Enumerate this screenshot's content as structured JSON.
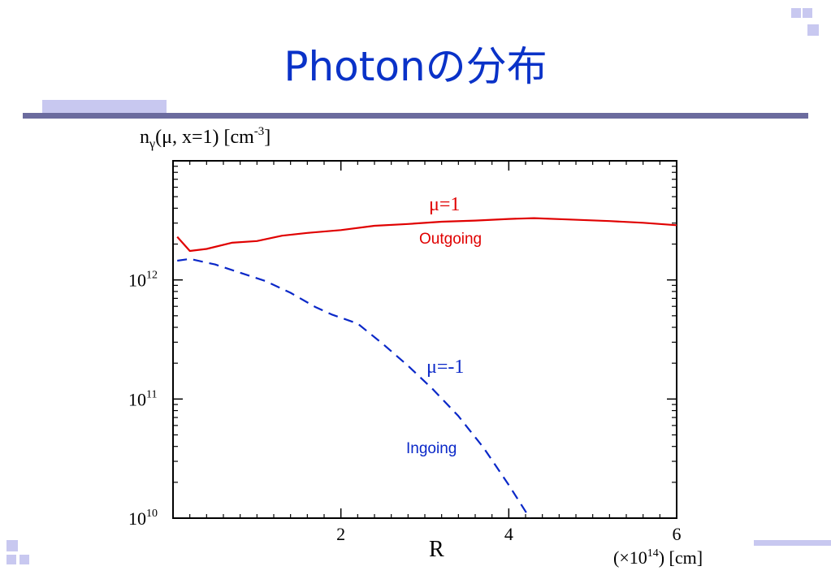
{
  "slide": {
    "title": "Photonの分布"
  },
  "colors": {
    "title": "#0a32c8",
    "outgoing": "#e00000",
    "ingoing": "#0a28c8",
    "accent_dark": "#6b6b9e",
    "accent_light": "#c8c8f0"
  },
  "icons": [
    "corner-squares-icon-top-right",
    "corner-squares-icon-bottom-left"
  ],
  "chart_data": {
    "type": "line",
    "ylabel_parts": {
      "n": "n",
      "gamma": "γ",
      "rest": "(μ, x=1) [cm",
      "exp": "-3",
      "close": "]"
    },
    "xlabel": "R",
    "x_unit_parts": {
      "open": "(×10",
      "exp": "14",
      "close": ") [cm]"
    },
    "y_scale": "log",
    "xlim": [
      0.0,
      6.0
    ],
    "ylim": [
      10000000000.0,
      10000000000000.0
    ],
    "x_ticks": [
      {
        "value": 2,
        "label": "2"
      },
      {
        "value": 4,
        "label": "4"
      },
      {
        "value": 6,
        "label": "6"
      }
    ],
    "y_ticks": [
      {
        "value": 10000000000.0,
        "base": "10",
        "exp": "10"
      },
      {
        "value": 100000000000.0,
        "base": "10",
        "exp": "11"
      },
      {
        "value": 1000000000000.0,
        "base": "10",
        "exp": "12"
      }
    ],
    "series": [
      {
        "name": "Outgoing",
        "line_style": "solid",
        "color": "#e00000",
        "label_mu": "μ=1",
        "label_text": "Outgoing",
        "x": [
          0.05,
          0.2,
          0.4,
          0.7,
          1.0,
          1.3,
          1.6,
          2.0,
          2.4,
          2.8,
          3.2,
          3.6,
          4.0,
          4.3,
          4.7,
          5.2,
          5.6,
          6.0
        ],
        "y": [
          2300000000000.0,
          1750000000000.0,
          1820000000000.0,
          2050000000000.0,
          2120000000000.0,
          2350000000000.0,
          2480000000000.0,
          2620000000000.0,
          2850000000000.0,
          2950000000000.0,
          3080000000000.0,
          3150000000000.0,
          3250000000000.0,
          3300000000000.0,
          3220000000000.0,
          3120000000000.0,
          3020000000000.0,
          2880000000000.0
        ]
      },
      {
        "name": "Ingoing",
        "line_style": "dashed",
        "color": "#0a28c8",
        "label_mu": "μ=-1",
        "label_text": "Ingoing",
        "x": [
          0.05,
          0.2,
          0.5,
          0.8,
          1.1,
          1.4,
          1.7,
          1.9,
          2.2,
          2.5,
          2.8,
          3.1,
          3.4,
          3.7,
          4.0,
          4.25
        ],
        "y": [
          1450000000000.0,
          1500000000000.0,
          1350000000000.0,
          1150000000000.0,
          980000000000.0,
          780000000000.0,
          590000000000.0,
          510000000000.0,
          430000000000.0,
          290000000000.0,
          190000000000.0,
          120000000000.0,
          72000000000.0,
          39000000000.0,
          19000000000.0,
          10000000000.0
        ]
      }
    ]
  }
}
